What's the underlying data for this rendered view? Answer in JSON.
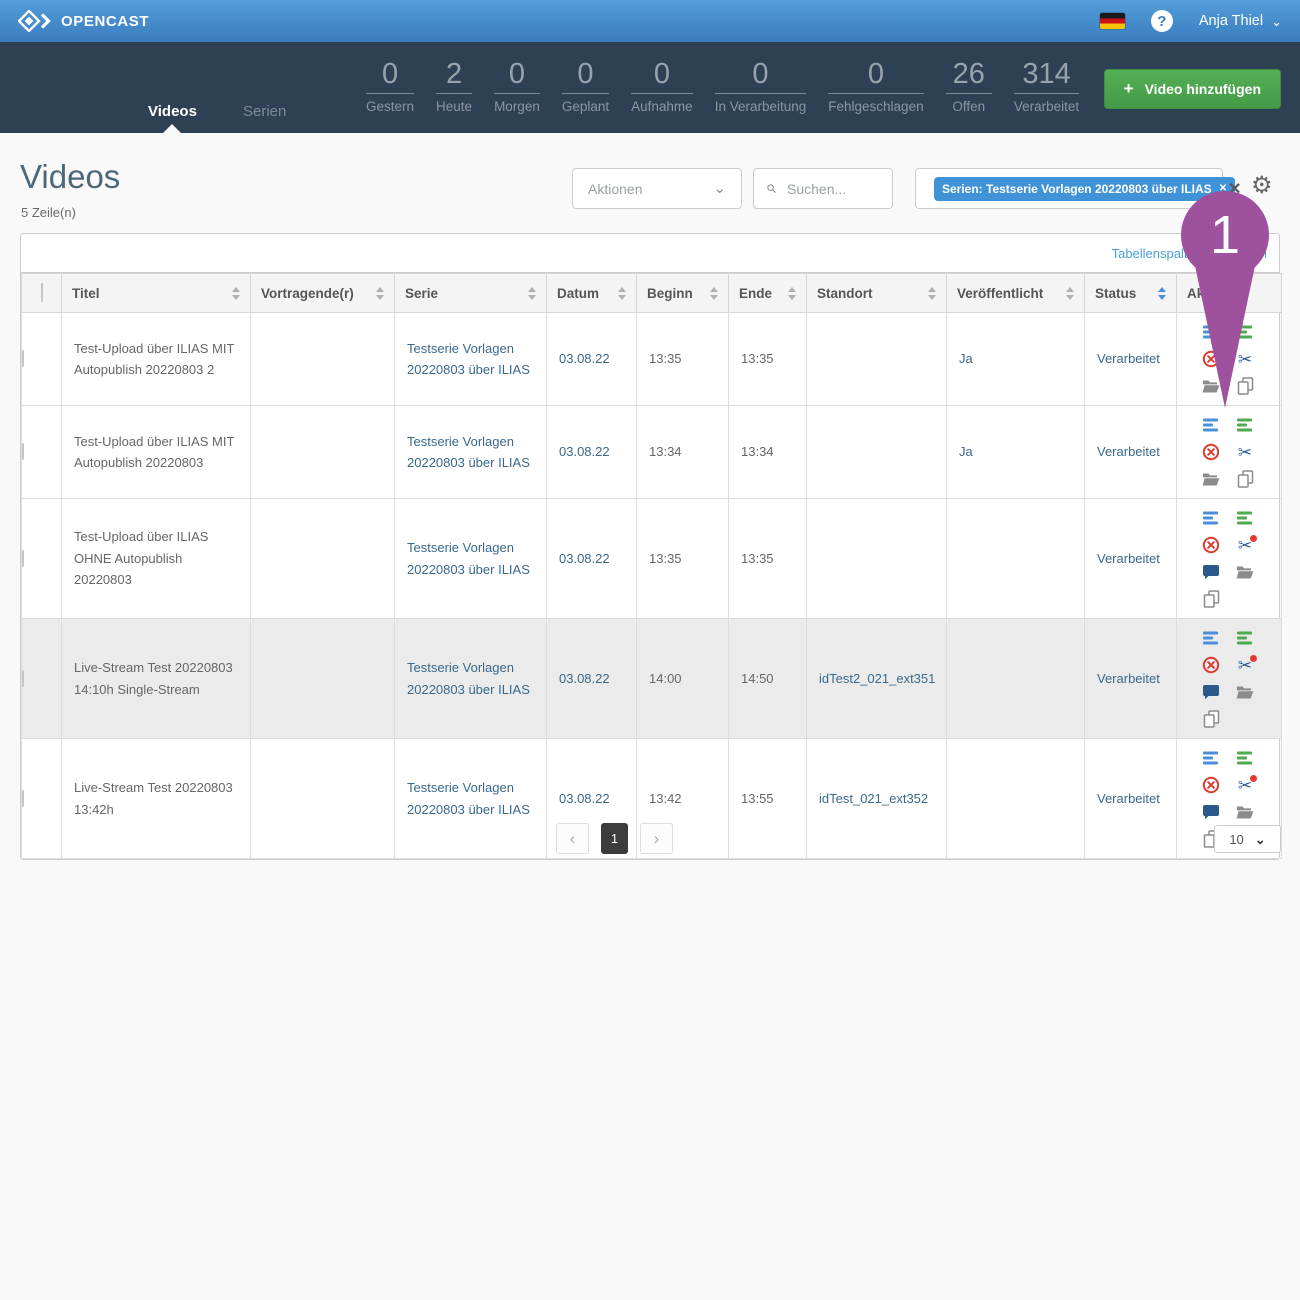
{
  "topbar": {
    "brand": "OPENCAST",
    "user_name": "Anja Thiel",
    "help_glyph": "?"
  },
  "nav": {
    "tabs": [
      {
        "label": "Videos",
        "active": true
      },
      {
        "label": "Serien",
        "active": false
      }
    ],
    "stats": [
      {
        "value": "0",
        "label": "Gestern"
      },
      {
        "value": "2",
        "label": "Heute"
      },
      {
        "value": "0",
        "label": "Morgen"
      },
      {
        "value": "0",
        "label": "Geplant"
      },
      {
        "value": "0",
        "label": "Aufnahme"
      },
      {
        "value": "0",
        "label": "In Verarbeitung"
      },
      {
        "value": "0",
        "label": "Fehlgeschlagen"
      },
      {
        "value": "26",
        "label": "Offen"
      },
      {
        "value": "314",
        "label": "Verarbeitet"
      }
    ],
    "add_button_label": "Video hinzufügen"
  },
  "page": {
    "title": "Videos",
    "row_count": "5 Zeile(n)"
  },
  "toolbar": {
    "actions_label": "Aktionen",
    "search_placeholder": "Suchen...",
    "filter_chip": "Serien: Testserie Vorlagen 20220803 über ILIAS",
    "edit_columns_link": "Tabellenspalten bearbeiten"
  },
  "annotation": {
    "label": "1",
    "color": "#9e519c"
  },
  "icons": {
    "plus_glyph": "+",
    "gear_glyph": "⚙",
    "clear_filters_glyph": "✕",
    "chip_close_glyph": "✕",
    "chevron_down_glyph": "⌄",
    "prev_glyph": "‹",
    "next_glyph": "›",
    "scissors_glyph": "✂"
  },
  "table": {
    "columns": [
      {
        "key": "select",
        "label": "",
        "type": "checkbox"
      },
      {
        "key": "title",
        "label": "Titel",
        "sortable": true
      },
      {
        "key": "presenter",
        "label": "Vortragende(r)",
        "sortable": true
      },
      {
        "key": "series",
        "label": "Serie",
        "sortable": true
      },
      {
        "key": "date",
        "label": "Datum",
        "sortable": true
      },
      {
        "key": "start",
        "label": "Beginn",
        "sortable": true
      },
      {
        "key": "end",
        "label": "Ende",
        "sortable": true
      },
      {
        "key": "location",
        "label": "Standort",
        "sortable": true
      },
      {
        "key": "published",
        "label": "Veröffentlicht",
        "sortable": true
      },
      {
        "key": "status",
        "label": "Status",
        "sortable": true,
        "sort_active": true
      },
      {
        "key": "actions",
        "label": "Aktionen",
        "sortable": false
      }
    ],
    "rows": [
      {
        "title": "Test-Upload über ILIAS MIT Autopublish 20220803 2",
        "presenter": "",
        "series": "Testserie Vorlagen 20220803 über ILIAS",
        "date": "03.08.22",
        "start": "13:35",
        "end": "13:35",
        "location": "",
        "published": "Ja",
        "status": "Verarbeitet",
        "highlighted": false,
        "actions": [
          "details",
          "publications",
          "delete",
          "cut",
          "assets",
          "duplicate"
        ]
      },
      {
        "title": "Test-Upload über ILIAS MIT Autopublish 20220803",
        "presenter": "",
        "series": "Testserie Vorlagen 20220803 über ILIAS",
        "date": "03.08.22",
        "start": "13:34",
        "end": "13:34",
        "location": "",
        "published": "Ja",
        "status": "Verarbeitet",
        "highlighted": false,
        "actions": [
          "details",
          "publications",
          "delete",
          "cut",
          "assets",
          "duplicate"
        ]
      },
      {
        "title": "Test-Upload über ILIAS OHNE Autopublish 20220803",
        "presenter": "",
        "series": "Testserie Vorlagen 20220803 über ILIAS",
        "date": "03.08.22",
        "start": "13:35",
        "end": "13:35",
        "location": "",
        "published": "",
        "status": "Verarbeitet",
        "highlighted": false,
        "actions": [
          "details",
          "publications",
          "delete",
          "cut-alert",
          "comments",
          "assets",
          "duplicate"
        ]
      },
      {
        "title": "Live-Stream Test 20220803 14:10h Single-Stream",
        "presenter": "",
        "series": "Testserie Vorlagen 20220803 über ILIAS",
        "date": "03.08.22",
        "start": "14:00",
        "end": "14:50",
        "location": "idTest2_021_ext351",
        "published": "",
        "status": "Verarbeitet",
        "highlighted": true,
        "actions": [
          "details",
          "publications",
          "delete",
          "cut-alert",
          "comments",
          "assets",
          "duplicate"
        ]
      },
      {
        "title": "Live-Stream Test 20220803 13:42h",
        "presenter": "",
        "series": "Testserie Vorlagen 20220803 über ILIAS",
        "date": "03.08.22",
        "start": "13:42",
        "end": "13:55",
        "location": "idTest_021_ext352",
        "published": "",
        "status": "Verarbeitet",
        "highlighted": false,
        "actions": [
          "details",
          "publications",
          "delete",
          "cut-alert",
          "comments",
          "assets",
          "duplicate"
        ]
      }
    ]
  },
  "pagination": {
    "current_page": "1",
    "page_size": "10"
  },
  "colors": {
    "topbar_blue": "#3a7dc0",
    "nav_dark": "#2e4154",
    "button_green": "#4cae4c",
    "chip_blue": "#4193d8",
    "link_blue": "#39698c",
    "annotation_purple": "#9e519c"
  }
}
